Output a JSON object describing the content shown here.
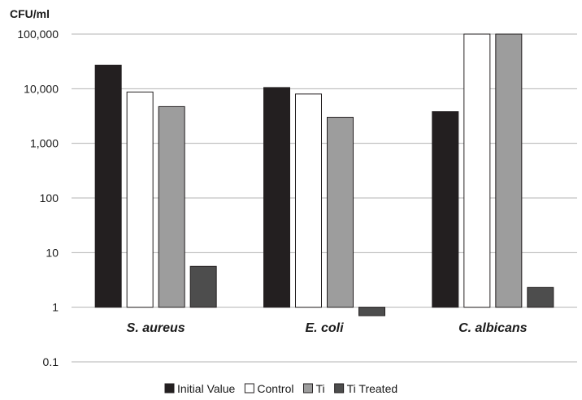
{
  "chart_data": {
    "type": "bar",
    "ylabel": "CFU/ml",
    "yscale": "log",
    "ylim": [
      0.1,
      100000
    ],
    "yticks": [
      0.1,
      1,
      10,
      100,
      1000,
      10000,
      100000
    ],
    "ytick_labels": [
      "0.1",
      "1",
      "10",
      "100",
      "1,000",
      "10,000",
      "100,000"
    ],
    "bar_baseline": 1,
    "categories": [
      "S. aureus",
      "E. coli",
      "C. albicans"
    ],
    "grid": true,
    "legend_position": "bottom",
    "series": [
      {
        "name": "Initial Value",
        "color": "#231f20",
        "values": [
          27000,
          10500,
          3800
        ]
      },
      {
        "name": "Control",
        "color": "#ffffff",
        "values": [
          8700,
          8000,
          100000
        ]
      },
      {
        "name": "Ti",
        "color": "#9d9d9d",
        "values": [
          4700,
          3000,
          100000
        ]
      },
      {
        "name": "Ti Treated",
        "color": "#4d4d4d",
        "values": [
          5.6,
          0.7,
          2.3
        ]
      }
    ]
  }
}
